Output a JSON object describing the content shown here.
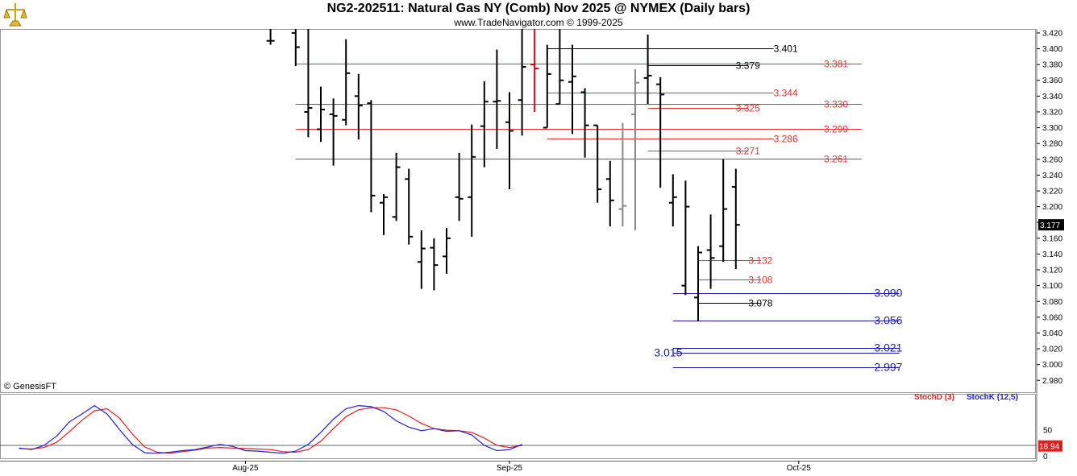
{
  "header": {
    "title": "NG2-202511:  Natural Gas NY (Comb) Nov 2025 @ NYMEX  (Daily bars)",
    "subtitle": "www.TradeNavigator.com © 1999-2025",
    "copyright": "© GenesisFT"
  },
  "colors": {
    "bar": "#000000",
    "up_bar": "#d00000",
    "level_red": "#e03030",
    "level_black": "#000000",
    "level_blue": "#1a1aa8",
    "stoch_d": "#e02020",
    "stoch_k": "#2020d0",
    "last_price_bg": "#000000"
  },
  "chart_data": [
    {
      "type": "ohlc",
      "title": "NG2-202511: Natural Gas NY (Comb) Nov 2025 @ NYMEX (Daily bars)",
      "ylim": [
        2.965,
        3.425
      ],
      "y_ticks": [
        "3.420",
        "3.400",
        "3.380",
        "3.360",
        "3.340",
        "3.320",
        "3.300",
        "3.280",
        "3.260",
        "3.240",
        "3.220",
        "3.200",
        "3.180",
        "3.160",
        "3.140",
        "3.120",
        "3.100",
        "3.080",
        "3.060",
        "3.040",
        "3.020",
        "3.000",
        "2.980"
      ],
      "x_ticks": [
        {
          "label": "Aug-25",
          "index": 18
        },
        {
          "label": "Sep-25",
          "index": 39
        },
        {
          "label": "Oct-25",
          "index": 62
        }
      ],
      "last_price": "3.177",
      "bars": [
        {
          "i": 1,
          "o": 3.41,
          "h": 3.425,
          "l": 3.405,
          "c": 3.41
        },
        {
          "i": 3,
          "o": 3.42,
          "h": 3.425,
          "l": 3.378,
          "c": 3.402
        },
        {
          "i": 4,
          "o": 3.32,
          "h": 3.425,
          "l": 3.288,
          "c": 3.325
        },
        {
          "i": 5,
          "o": 3.298,
          "h": 3.352,
          "l": 3.282,
          "c": 3.323
        },
        {
          "i": 6,
          "o": 3.317,
          "h": 3.337,
          "l": 3.252,
          "c": 3.315
        },
        {
          "i": 7,
          "o": 3.31,
          "h": 3.412,
          "l": 3.303,
          "c": 3.369
        },
        {
          "i": 8,
          "o": 3.34,
          "h": 3.368,
          "l": 3.285,
          "c": 3.328
        },
        {
          "i": 9,
          "o": 3.331,
          "h": 3.335,
          "l": 3.193,
          "c": 3.214
        },
        {
          "i": 10,
          "o": 3.205,
          "h": 3.216,
          "l": 3.164,
          "c": 3.212
        },
        {
          "i": 11,
          "o": 3.187,
          "h": 3.268,
          "l": 3.182,
          "c": 3.25
        },
        {
          "i": 12,
          "o": 3.235,
          "h": 3.248,
          "l": 3.152,
          "c": 3.162
        },
        {
          "i": 13,
          "o": 3.13,
          "h": 3.17,
          "l": 3.096,
          "c": 3.147
        },
        {
          "i": 14,
          "o": 3.148,
          "h": 3.16,
          "l": 3.094,
          "c": 3.126
        },
        {
          "i": 15,
          "o": 3.137,
          "h": 3.173,
          "l": 3.115,
          "c": 3.16
        },
        {
          "i": 16,
          "o": 3.212,
          "h": 3.268,
          "l": 3.182,
          "c": 3.21
        },
        {
          "i": 17,
          "o": 3.212,
          "h": 3.304,
          "l": 3.162,
          "c": 3.263
        },
        {
          "i": 18,
          "o": 3.302,
          "h": 3.359,
          "l": 3.25,
          "c": 3.333
        },
        {
          "i": 19,
          "o": 3.333,
          "h": 3.399,
          "l": 3.273,
          "c": 3.334
        },
        {
          "i": 20,
          "o": 3.307,
          "h": 3.345,
          "l": 3.222,
          "c": 3.296
        },
        {
          "i": 21,
          "o": 3.335,
          "h": 3.425,
          "l": 3.29,
          "c": 3.377
        },
        {
          "i": 22,
          "o": 3.38,
          "h": 3.425,
          "l": 3.32,
          "c": 3.375,
          "color": "red"
        },
        {
          "i": 23,
          "o": 3.3,
          "h": 3.405,
          "l": 3.3,
          "c": 3.368
        },
        {
          "i": 24,
          "o": 3.33,
          "h": 3.425,
          "l": 3.33,
          "c": 3.36
        },
        {
          "i": 25,
          "o": 3.358,
          "h": 3.405,
          "l": 3.292,
          "c": 3.365
        },
        {
          "i": 26,
          "o": 3.345,
          "h": 3.35,
          "l": 3.262,
          "c": 3.303
        },
        {
          "i": 27,
          "o": 3.303,
          "h": 3.303,
          "l": 3.205,
          "c": 3.222
        },
        {
          "i": 28,
          "o": 3.235,
          "h": 3.258,
          "l": 3.175,
          "c": 3.208
        },
        {
          "i": 29,
          "o": 3.197,
          "h": 3.306,
          "l": 3.175,
          "c": 3.201,
          "color": "gray"
        },
        {
          "i": 30,
          "o": 3.317,
          "h": 3.374,
          "l": 3.17,
          "c": 3.357,
          "color": "gray"
        },
        {
          "i": 31,
          "o": 3.363,
          "h": 3.418,
          "l": 3.33,
          "c": 3.366
        },
        {
          "i": 32,
          "o": 3.355,
          "h": 3.364,
          "l": 3.224,
          "c": 3.342
        },
        {
          "i": 33,
          "o": 3.205,
          "h": 3.241,
          "l": 3.175,
          "c": 3.212
        },
        {
          "i": 34,
          "o": 3.1,
          "h": 3.233,
          "l": 3.088,
          "c": 3.2
        },
        {
          "i": 35,
          "o": 3.085,
          "h": 3.15,
          "l": 3.055,
          "c": 3.142
        },
        {
          "i": 36,
          "o": 3.145,
          "h": 3.19,
          "l": 3.096,
          "c": 3.135
        },
        {
          "i": 37,
          "o": 3.15,
          "h": 3.26,
          "l": 3.13,
          "c": 3.197
        },
        {
          "i": 38,
          "o": 3.225,
          "h": 3.248,
          "l": 3.121,
          "c": 3.177
        }
      ]
    },
    {
      "type": "line",
      "title": "Stochastics",
      "ylim": [
        0,
        100
      ],
      "y_ticks": [
        "50",
        "0"
      ],
      "reference_line": 20,
      "last_value": "18.94",
      "series": [
        {
          "name": "StochD (3)",
          "values": [
            14,
            13,
            16,
            26,
            46,
            68,
            86,
            90,
            72,
            42,
            17,
            7,
            5,
            8,
            11,
            15,
            16,
            15,
            14,
            13,
            12,
            8,
            7,
            12,
            28,
            52,
            75,
            88,
            92,
            92,
            88,
            76,
            62,
            52,
            49,
            48,
            45,
            34,
            20,
            16,
            20
          ]
        },
        {
          "name": "StochK (12,5)",
          "values": [
            15,
            12,
            20,
            38,
            65,
            80,
            96,
            80,
            50,
            22,
            6,
            5,
            7,
            10,
            12,
            17,
            22,
            18,
            10,
            9,
            7,
            5,
            9,
            22,
            45,
            70,
            90,
            96,
            94,
            85,
            67,
            55,
            48,
            52,
            47,
            48,
            40,
            20,
            10,
            12,
            22
          ]
        }
      ]
    }
  ],
  "levels": [
    {
      "label": "3.401",
      "value": 3.401,
      "color": "black",
      "x0": 23,
      "x1": 41,
      "lx": 41
    },
    {
      "label": "3.379",
      "value": 3.379,
      "color": "black",
      "x0": 31,
      "x1": 39,
      "lx": 38
    },
    {
      "label": "3.381",
      "value": 3.381,
      "color": "red",
      "x0": 3,
      "x1": 48,
      "lx": 45
    },
    {
      "label": "3.344",
      "value": 3.344,
      "color": "red",
      "x0": 23,
      "x1": 41,
      "lx": 41
    },
    {
      "label": "3.325",
      "value": 3.325,
      "color": "red",
      "x0": 31,
      "x1": 39,
      "lx": 38
    },
    {
      "label": "3.330",
      "value": 3.33,
      "color": "red",
      "x0": 3,
      "x1": 48,
      "lx": 45
    },
    {
      "label": "3.299",
      "value": 3.299,
      "color": "red",
      "x0": 3,
      "x1": 48,
      "lx": 45
    },
    {
      "label": "3.286",
      "value": 3.286,
      "color": "red",
      "x0": 23,
      "x1": 41,
      "lx": 41
    },
    {
      "label": "3.271",
      "value": 3.271,
      "color": "red",
      "x0": 31,
      "x1": 39,
      "lx": 38
    },
    {
      "label": "3.261",
      "value": 3.261,
      "color": "red",
      "x0": 3,
      "x1": 48,
      "lx": 45
    },
    {
      "label": "3.132",
      "value": 3.132,
      "color": "red",
      "x0": 35,
      "x1": 40,
      "lx": 39
    },
    {
      "label": "3.108",
      "value": 3.108,
      "color": "red",
      "x0": 35,
      "x1": 40,
      "lx": 39
    },
    {
      "label": "3.090",
      "value": 3.09,
      "color": "blue",
      "x0": 33,
      "x1": 51,
      "lx": 49,
      "big": true
    },
    {
      "label": "3.078",
      "value": 3.078,
      "color": "black",
      "x0": 35,
      "x1": 40,
      "lx": 39
    },
    {
      "label": "3.056",
      "value": 3.056,
      "color": "blue",
      "x0": 33,
      "x1": 51,
      "lx": 49,
      "big": true
    },
    {
      "label": "3.021",
      "value": 3.021,
      "color": "blue",
      "x0": 33,
      "x1": 51,
      "lx": 49,
      "big": true
    },
    {
      "label": "3.015",
      "value": 3.015,
      "color": "blue",
      "x0": 33,
      "x1": 51,
      "lx": 31.5,
      "big": true
    },
    {
      "label": "2.997",
      "value": 2.997,
      "color": "blue",
      "x0": 33,
      "x1": 51,
      "lx": 49,
      "big": true
    }
  ]
}
